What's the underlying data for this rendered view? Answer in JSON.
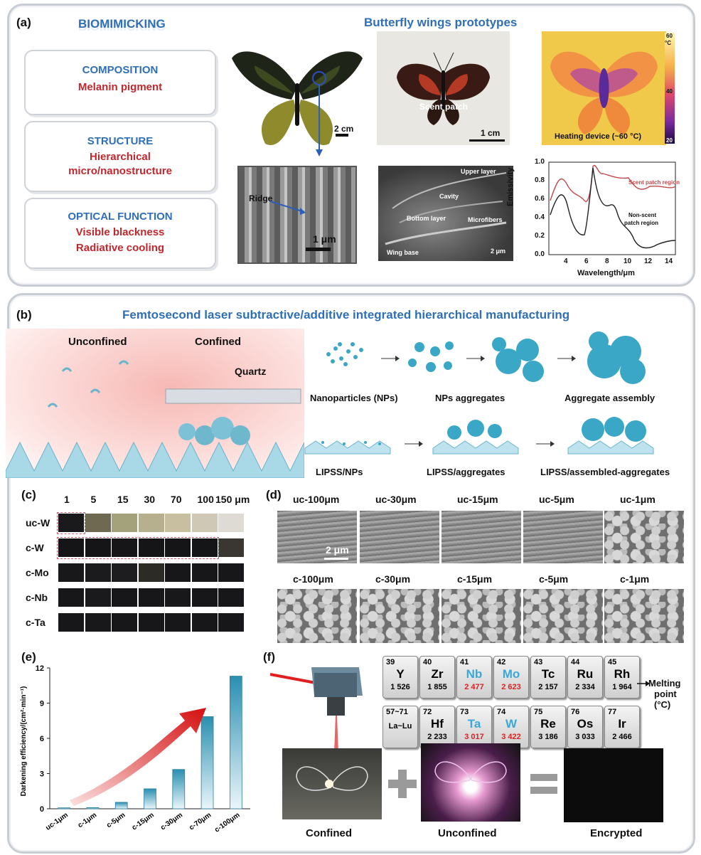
{
  "panel_a": {
    "label": "(a)",
    "biomimicking": "BIOMIMICKING",
    "title": "Butterfly wings prototypes",
    "boxes": [
      {
        "head": "COMPOSITION",
        "lines": [
          "Melanin pigment"
        ]
      },
      {
        "head": "STRUCTURE",
        "lines": [
          "Hierarchical",
          "micro/nanostructure"
        ]
      },
      {
        "head": "OPTICAL FUNCTION",
        "lines": [
          "Visible blackness",
          "Radiative cooling"
        ]
      }
    ],
    "scale_2cm": "2 cm",
    "ridge": "Ridge",
    "scale_1um": "1 μm",
    "scent_patch": "Scent patch",
    "scale_1cm": "1 cm",
    "colorbar_top": "60",
    "colorbar_unit": "°C",
    "colorbar_mid": "40",
    "colorbar_bottom": "20",
    "heating": "Heating device (~60 °C)",
    "sem_labels": {
      "upper": "Upper layer",
      "cavity": "Cavity",
      "bottom": "Bottom layer",
      "micro": "Microfibers",
      "base": "Wing base",
      "scale": "2 μm"
    },
    "emissivity_chart": {
      "ylabel": "Emissivity",
      "xlabel": "Wavelength/μm",
      "xticks": [
        "4",
        "6",
        "8",
        "10",
        "12",
        "14"
      ],
      "yticks": [
        "0.0",
        "0.2",
        "0.4",
        "0.6",
        "0.8",
        "1.0"
      ],
      "series1": "Scent patch region",
      "series2_l1": "Non-scent",
      "series2_l2": "patch region"
    }
  },
  "panel_b": {
    "label": "(b)",
    "title": "Femtosecond laser subtractive/additive integrated hierarchical manufacturing",
    "unconfined": "Unconfined",
    "confined": "Confined",
    "quartz": "Quartz",
    "row1": [
      "Nanoparticles (NPs)",
      "NPs aggregates",
      "Aggregate assembly"
    ],
    "row2": [
      "LIPSS/NPs",
      "LIPSS/aggregates",
      "LIPSS/assembled-aggregates"
    ]
  },
  "panel_c": {
    "label": "(c)",
    "cols": [
      "1",
      "5",
      "15",
      "30",
      "70",
      "100",
      "150 μm"
    ],
    "rows": [
      "uc-W",
      "c-W",
      "c-Mo",
      "c-Nb",
      "c-Ta"
    ],
    "colors": [
      [
        "#1a1a1c",
        "#6e6a52",
        "#a4a27a",
        "#b7b08e",
        "#c8bfa0",
        "#cfc8b4",
        "#dedad4"
      ],
      [
        "#151517",
        "#151517",
        "#161618",
        "#151517",
        "#151517",
        "#151517",
        "#3a3631"
      ],
      [
        "#18181a",
        "#1b1b1d",
        "#1d1d1f",
        "#2c2b26",
        "#17171a",
        "#17171a",
        "#17171a"
      ],
      [
        "#17171a",
        "#1a1a1d",
        "#17171a",
        "#17171a",
        "#18181b",
        "#17171a",
        "#17171a"
      ],
      [
        "#17171a",
        "#18181b",
        "#17171a",
        "#17171a",
        "#17171a",
        "#17171a",
        "#17171a"
      ]
    ]
  },
  "panel_d": {
    "label": "(d)",
    "top": [
      "uc-100μm",
      "uc-30μm",
      "uc-15μm",
      "uc-5μm",
      "uc-1μm"
    ],
    "bottom": [
      "c-100μm",
      "c-30μm",
      "c-15μm",
      "c-5μm",
      "c-1μm"
    ],
    "scale": "2 μm"
  },
  "panel_e": {
    "label": "(e)",
    "chart_data": {
      "type": "bar",
      "categories": [
        "uc-1μm",
        "c-1μm",
        "c-5μm",
        "c-15μm",
        "c-30μm",
        "c-70μm",
        "c-100μm"
      ],
      "values": [
        0.08,
        0.1,
        0.55,
        1.7,
        3.35,
        7.85,
        11.3
      ],
      "ylabel": "Darkening efficiency/(cm²·min⁻¹)",
      "ylim": [
        0,
        12
      ],
      "yticks": [
        "0",
        "3",
        "6",
        "9",
        "12"
      ],
      "bar_color": "#2a8fb0"
    }
  },
  "panel_f": {
    "label": "(f)",
    "elements": [
      {
        "num": "39",
        "sym": "Y",
        "mp": "1 526",
        "hl": false
      },
      {
        "num": "40",
        "sym": "Zr",
        "mp": "1 855",
        "hl": false
      },
      {
        "num": "41",
        "sym": "Nb",
        "mp": "2 477",
        "hl": true
      },
      {
        "num": "42",
        "sym": "Mo",
        "mp": "2 623",
        "hl": true
      },
      {
        "num": "43",
        "sym": "Tc",
        "mp": "2 157",
        "hl": false
      },
      {
        "num": "44",
        "sym": "Ru",
        "mp": "2 334",
        "hl": false
      },
      {
        "num": "45",
        "sym": "Rh",
        "mp": "1 964",
        "hl": false
      },
      {
        "num": "57~71",
        "sym": "La~Lu",
        "mp": "",
        "hl": false
      },
      {
        "num": "72",
        "sym": "Hf",
        "mp": "2 233",
        "hl": false
      },
      {
        "num": "73",
        "sym": "Ta",
        "mp": "3 017",
        "hl": true
      },
      {
        "num": "74",
        "sym": "W",
        "mp": "3 422",
        "hl": true
      },
      {
        "num": "75",
        "sym": "Re",
        "mp": "3 186",
        "hl": false
      },
      {
        "num": "76",
        "sym": "Os",
        "mp": "3 033",
        "hl": false
      },
      {
        "num": "77",
        "sym": "Ir",
        "mp": "2 466",
        "hl": false
      }
    ],
    "mp_label_1": "Melting",
    "mp_label_2": "point",
    "mp_label_3": "(°C)",
    "captions": [
      "Confined",
      "Unconfined",
      "Encrypted"
    ]
  }
}
